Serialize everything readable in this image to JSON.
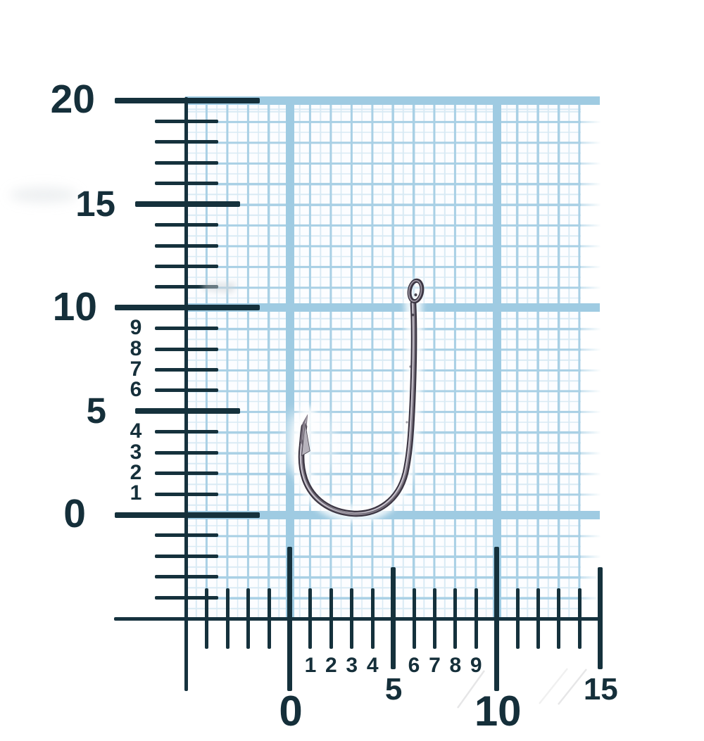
{
  "figure": {
    "object_icon": "fishing-hook",
    "paper": "blue-millimeter-grid"
  },
  "colors": {
    "ruler_dark": "#15313c",
    "grid_medium_line": "#a9d0e5",
    "grid_fine_line": "#d9eaf4",
    "grid_band": "#9fcbe2",
    "paper": "#fcfdff",
    "hook_dark": "#3b3542",
    "hook_mid": "#8d8692",
    "hook_light": "#d3ced8"
  },
  "grid": {
    "cell_mm": 1,
    "fine_cell_mm": 0.5,
    "band_rows_mm": [
      20,
      10,
      0
    ],
    "band_cols_mm": [
      0,
      10
    ]
  },
  "vertical_ruler": {
    "major_ticks": [
      {
        "label": "20",
        "mm": 20,
        "size": "large"
      },
      {
        "label": "15",
        "mm": 15,
        "size": "medium"
      },
      {
        "label": "10",
        "mm": 10,
        "size": "large"
      },
      {
        "label": "5",
        "mm": 5,
        "size": "medium"
      },
      {
        "label": "0",
        "mm": 0,
        "size": "large"
      }
    ],
    "labeled_minor_ticks": [
      {
        "label": "9",
        "mm": 9
      },
      {
        "label": "8",
        "mm": 8
      },
      {
        "label": "7",
        "mm": 7
      },
      {
        "label": "6",
        "mm": 6
      },
      {
        "label": "4",
        "mm": 4
      },
      {
        "label": "3",
        "mm": 3
      },
      {
        "label": "2",
        "mm": 2
      },
      {
        "label": "1",
        "mm": 1
      }
    ],
    "unlabeled_minor_ticks_mm": [
      19,
      18,
      17,
      16,
      14,
      13,
      12,
      11,
      -1,
      -2,
      -3,
      -4
    ]
  },
  "horizontal_ruler": {
    "major_ticks": [
      {
        "label": "0",
        "mm": 0,
        "size": "large"
      },
      {
        "label": "5",
        "mm": 5,
        "size": "medium"
      },
      {
        "label": "10",
        "mm": 10,
        "size": "large"
      },
      {
        "label": "15",
        "mm": 15,
        "size": "medium"
      }
    ],
    "labeled_minor_ticks": [
      {
        "label": "1",
        "mm": 1
      },
      {
        "label": "2",
        "mm": 2
      },
      {
        "label": "3",
        "mm": 3
      },
      {
        "label": "4",
        "mm": 4
      },
      {
        "label": "6",
        "mm": 6
      },
      {
        "label": "7",
        "mm": 7
      },
      {
        "label": "8",
        "mm": 8
      },
      {
        "label": "9",
        "mm": 9
      }
    ],
    "unlabeled_minor_ticks_mm": [
      -4,
      -3,
      -2,
      -1,
      11,
      12,
      13,
      14
    ]
  }
}
